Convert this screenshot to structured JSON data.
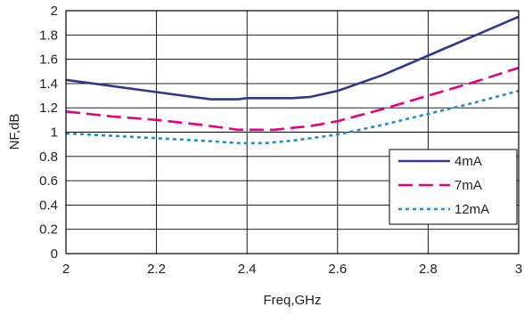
{
  "chart_data": {
    "type": "line",
    "xlabel": "Freq,GHz",
    "ylabel": "NF,dB",
    "xlim": [
      2,
      3
    ],
    "ylim": [
      0,
      2
    ],
    "x_ticks": [
      "2",
      "2.2",
      "2.4",
      "2.6",
      "2.8",
      "3"
    ],
    "y_ticks": [
      "0",
      "0.2",
      "0.4",
      "0.6",
      "0.8",
      "1",
      "1.2",
      "1.4",
      "1.6",
      "1.8",
      "2"
    ],
    "grid": true,
    "legend_position": "lower-right",
    "series": [
      {
        "name": "4mA",
        "color": "#2b3990",
        "dash": "solid",
        "x": [
          2.0,
          2.1,
          2.2,
          2.28,
          2.32,
          2.38,
          2.4,
          2.5,
          2.54,
          2.6,
          2.7,
          2.8,
          2.9,
          3.0
        ],
        "y": [
          1.43,
          1.38,
          1.33,
          1.29,
          1.27,
          1.27,
          1.28,
          1.28,
          1.29,
          1.34,
          1.47,
          1.63,
          1.79,
          1.95
        ]
      },
      {
        "name": "7mA",
        "color": "#e6007e",
        "dash": "long-dash",
        "x": [
          2.0,
          2.1,
          2.2,
          2.3,
          2.38,
          2.4,
          2.46,
          2.54,
          2.6,
          2.7,
          2.8,
          2.9,
          3.0
        ],
        "y": [
          1.17,
          1.13,
          1.1,
          1.06,
          1.02,
          1.02,
          1.02,
          1.05,
          1.09,
          1.19,
          1.3,
          1.41,
          1.53
        ]
      },
      {
        "name": "12mA",
        "color": "#1a8fcf",
        "dash": "short-dash",
        "x": [
          2.0,
          2.1,
          2.2,
          2.3,
          2.38,
          2.44,
          2.5,
          2.6,
          2.7,
          2.8,
          2.9,
          3.0
        ],
        "y": [
          0.99,
          0.97,
          0.95,
          0.93,
          0.91,
          0.91,
          0.93,
          0.98,
          1.06,
          1.15,
          1.24,
          1.34
        ]
      }
    ]
  }
}
